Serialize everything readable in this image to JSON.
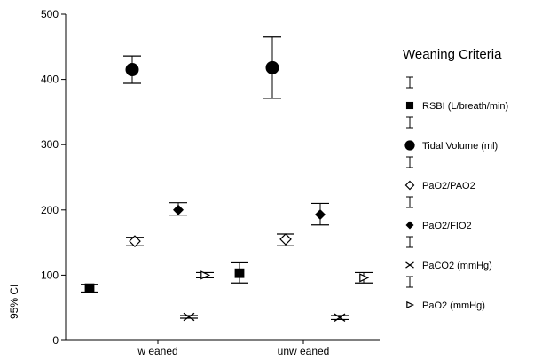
{
  "chart_data": {
    "type": "scatter",
    "plot_subtype": "error-bar",
    "ylabel": "95% CI",
    "ylim": [
      0,
      500
    ],
    "yticks": [
      0,
      100,
      200,
      300,
      400,
      500
    ],
    "categories": [
      "weaned",
      "unweaned"
    ],
    "category_labels": [
      "w eaned",
      "unw eaned"
    ],
    "legend_title": "Weaning Criteria",
    "legend_position": "right",
    "series": [
      {
        "name": "RSBI (L/breath/min)",
        "marker": "filled-square",
        "mean": [
          80,
          103
        ],
        "lower": [
          74,
          88
        ],
        "upper": [
          86,
          119
        ]
      },
      {
        "name": "Tidal Volume (ml)",
        "marker": "filled-circle",
        "mean": [
          415,
          418
        ],
        "lower": [
          394,
          371
        ],
        "upper": [
          436,
          465
        ]
      },
      {
        "name": "PaO2/PAO2",
        "marker": "open-diamond",
        "mean": [
          152,
          155
        ],
        "lower": [
          145,
          145
        ],
        "upper": [
          158,
          163
        ]
      },
      {
        "name": "PaO2/FIO2",
        "marker": "filled-diamond",
        "mean": [
          200,
          193
        ],
        "lower": [
          192,
          177
        ],
        "upper": [
          211,
          210
        ]
      },
      {
        "name": "PaCO2 (mmHg)",
        "marker": "cross",
        "mean": [
          36,
          35
        ],
        "lower": [
          34,
          32
        ],
        "upper": [
          38,
          38
        ]
      },
      {
        "name": "PaO2 (mmHg)",
        "marker": "open-triangle-right",
        "mean": [
          100,
          96
        ],
        "lower": [
          96,
          88
        ],
        "upper": [
          104,
          104
        ]
      }
    ]
  }
}
